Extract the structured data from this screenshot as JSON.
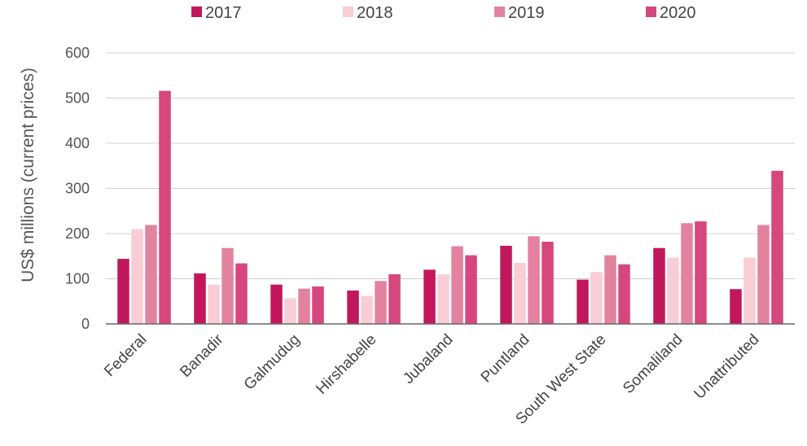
{
  "chart_data": {
    "type": "bar",
    "title": "",
    "xlabel": "",
    "ylabel": "US$ millions (current prices)",
    "ylim": [
      0,
      600
    ],
    "yticks": [
      0,
      100,
      200,
      300,
      400,
      500,
      600
    ],
    "grid": true,
    "legend_position": "top",
    "categories": [
      "Federal",
      "Banadir",
      "Galmudug",
      "Hirshabelle",
      "Jubaland",
      "Puntland",
      "South West State",
      "Somaliland",
      "Unattributed"
    ],
    "series": [
      {
        "name": "2017",
        "color": "#c2185b",
        "values": [
          144,
          112,
          87,
          74,
          120,
          173,
          98,
          168,
          77
        ]
      },
      {
        "name": "2018",
        "color": "#f8cdd6",
        "values": [
          210,
          87,
          57,
          62,
          110,
          135,
          115,
          147,
          147
        ]
      },
      {
        "name": "2019",
        "color": "#e3829f",
        "values": [
          219,
          168,
          78,
          95,
          172,
          194,
          152,
          223,
          219
        ]
      },
      {
        "name": "2020",
        "color": "#d6477d",
        "values": [
          516,
          134,
          83,
          110,
          152,
          182,
          132,
          227,
          339
        ]
      }
    ]
  }
}
